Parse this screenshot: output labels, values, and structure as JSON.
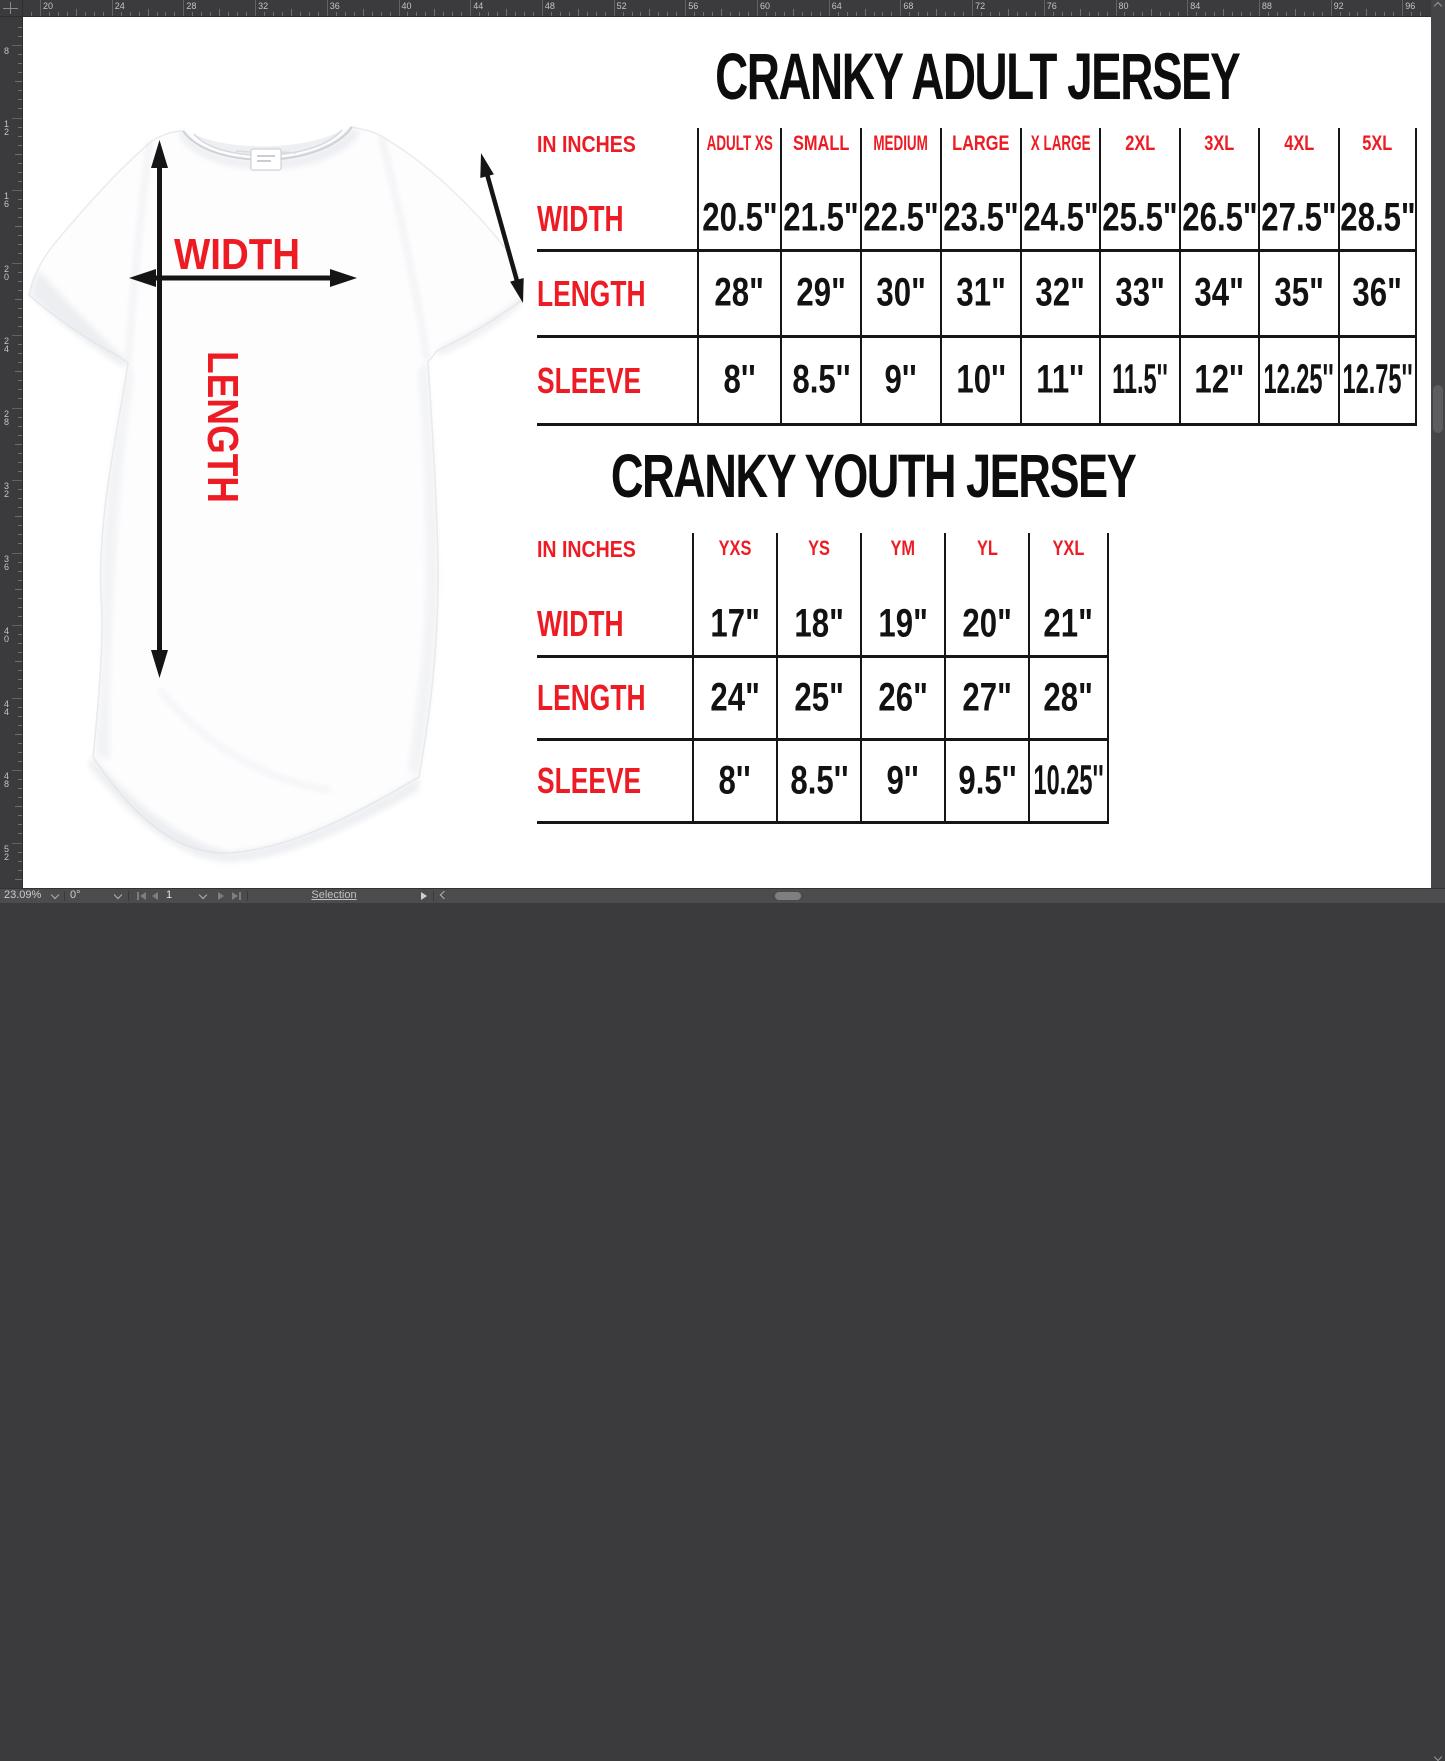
{
  "window": {
    "top_ruler_numbers": [
      "20",
      "24",
      "28",
      "32",
      "36",
      "40",
      "44",
      "48",
      "52",
      "56",
      "60",
      "64",
      "68",
      "72",
      "76",
      "80",
      "84",
      "88",
      "92",
      "96"
    ],
    "left_ruler_numbers": [
      "8",
      "12",
      "16",
      "20",
      "24",
      "28",
      "32",
      "36",
      "40",
      "44",
      "48",
      "52"
    ],
    "status_bar": {
      "zoom_level": "23.09%",
      "rotation": "0°",
      "frame_number": "1",
      "mode_label": "Selection"
    }
  },
  "colors": {
    "accent_red": "#ed1c24",
    "table_line": "#161616",
    "chrome_bg": "#3b3b3d",
    "statusbar_bg": "#4c4c4e",
    "canvas_bg": "#ffffff"
  },
  "shirt_diagram": {
    "width_label": "WIDTH",
    "length_label": "LENGTH"
  },
  "adult_chart": {
    "title": "CRANKY ADULT JERSEY",
    "unit_label": "IN INCHES",
    "size_headers": [
      "ADULT XS",
      "SMALL",
      "MEDIUM",
      "LARGE",
      "X LARGE",
      "2XL",
      "3XL",
      "4XL",
      "5XL"
    ],
    "rows": [
      {
        "label": "WIDTH",
        "values": [
          "20.5\"",
          "21.5\"",
          "22.5\"",
          "23.5\"",
          "24.5\"",
          "25.5\"",
          "26.5\"",
          "27.5\"",
          "28.5\""
        ]
      },
      {
        "label": "LENGTH",
        "values": [
          "28\"",
          "29\"",
          "30\"",
          "31\"",
          "32\"",
          "33\"",
          "34\"",
          "35\"",
          "36\""
        ]
      },
      {
        "label": "SLEEVE",
        "values": [
          "8''",
          "8.5''",
          "9''",
          "10''",
          "11''",
          "11.5''",
          "12''",
          "12.25''",
          "12.75''"
        ]
      }
    ]
  },
  "youth_chart": {
    "title": "CRANKY YOUTH JERSEY",
    "unit_label": "IN INCHES",
    "size_headers": [
      "YXS",
      "YS",
      "YM",
      "YL",
      "YXL"
    ],
    "rows": [
      {
        "label": "WIDTH",
        "values": [
          "17\"",
          "18\"",
          "19\"",
          "20\"",
          "21\""
        ]
      },
      {
        "label": "LENGTH",
        "values": [
          "24\"",
          "25\"",
          "26\"",
          "27\"",
          "28\""
        ]
      },
      {
        "label": "SLEEVE",
        "values": [
          "8''",
          "8.5''",
          "9''",
          "9.5''",
          "10.25''"
        ]
      }
    ]
  }
}
